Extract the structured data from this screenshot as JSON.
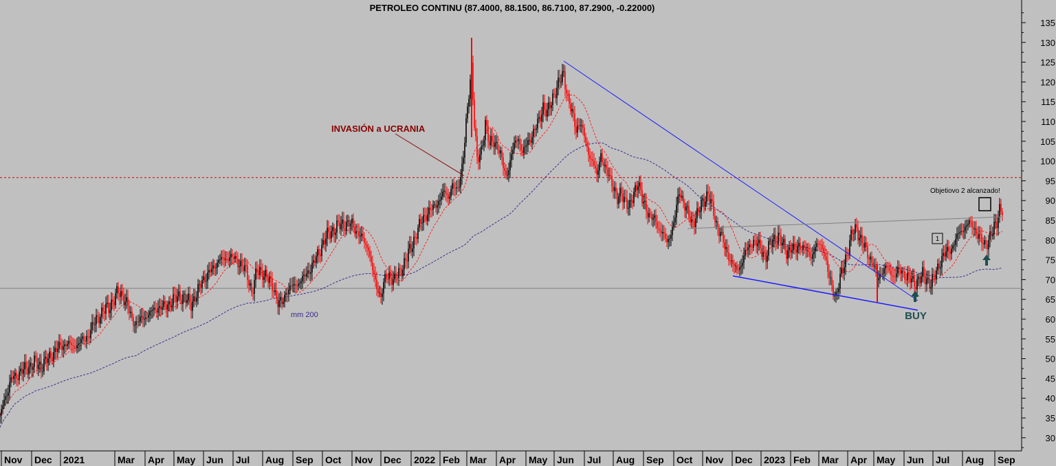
{
  "chart_data": {
    "type": "candlestick",
    "title": "PETROLEO CONTINU (87.4000, 88.1500, 86.7100, 87.2900, -0.22000)",
    "ylim": [
      25,
      140
    ],
    "yticks": [
      30,
      35,
      40,
      45,
      50,
      55,
      60,
      65,
      70,
      75,
      80,
      85,
      90,
      95,
      100,
      105,
      110,
      115,
      120,
      125,
      130,
      135
    ],
    "x_labels": [
      "Nov",
      "Dec",
      "2021",
      "Mar",
      "Apr",
      "May",
      "Jun",
      "Jul",
      "Aug",
      "Sep",
      "Oct",
      "Nov",
      "Dec",
      "2022",
      "Feb",
      "Mar",
      "Apr",
      "May",
      "Jun",
      "Jul",
      "Aug",
      "Sep",
      "Oct",
      "Nov",
      "Dec",
      "2023",
      "Feb",
      "Mar",
      "Apr",
      "May",
      "Jun",
      "Jul",
      "Aug",
      "Sep"
    ],
    "price_path": [
      [
        0,
        35
      ],
      [
        6,
        40
      ],
      [
        12,
        42
      ],
      [
        17,
        45
      ],
      [
        25,
        46
      ],
      [
        33,
        47
      ],
      [
        42,
        48
      ],
      [
        52,
        49
      ],
      [
        60,
        48
      ],
      [
        70,
        50
      ],
      [
        80,
        52
      ],
      [
        88,
        53
      ],
      [
        97,
        54
      ],
      [
        106,
        53
      ],
      [
        115,
        54
      ],
      [
        124,
        55
      ],
      [
        132,
        57
      ],
      [
        140,
        60
      ],
      [
        150,
        62
      ],
      [
        158,
        63
      ],
      [
        166,
        65
      ],
      [
        172,
        67
      ],
      [
        178,
        66
      ],
      [
        184,
        64
      ],
      [
        192,
        60
      ],
      [
        198,
        59
      ],
      [
        206,
        60
      ],
      [
        214,
        61
      ],
      [
        222,
        62
      ],
      [
        230,
        63
      ],
      [
        238,
        63
      ],
      [
        246,
        64
      ],
      [
        254,
        65
      ],
      [
        262,
        66
      ],
      [
        270,
        65
      ],
      [
        278,
        64
      ],
      [
        286,
        66
      ],
      [
        294,
        70
      ],
      [
        302,
        71
      ],
      [
        310,
        73
      ],
      [
        318,
        75
      ],
      [
        326,
        75
      ],
      [
        334,
        76
      ],
      [
        342,
        75
      ],
      [
        350,
        74
      ],
      [
        358,
        72
      ],
      [
        366,
        67
      ],
      [
        374,
        72
      ],
      [
        382,
        72
      ],
      [
        390,
        70
      ],
      [
        398,
        68
      ],
      [
        404,
        64
      ],
      [
        410,
        64
      ],
      [
        416,
        67
      ],
      [
        424,
        68
      ],
      [
        432,
        69
      ],
      [
        440,
        70
      ],
      [
        448,
        72
      ],
      [
        456,
        74
      ],
      [
        464,
        77
      ],
      [
        472,
        80
      ],
      [
        480,
        82
      ],
      [
        488,
        83
      ],
      [
        496,
        84
      ],
      [
        504,
        84
      ],
      [
        512,
        84
      ],
      [
        520,
        82
      ],
      [
        528,
        80
      ],
      [
        536,
        78
      ],
      [
        542,
        72
      ],
      [
        548,
        68
      ],
      [
        554,
        66
      ],
      [
        560,
        70
      ],
      [
        566,
        71
      ],
      [
        574,
        70
      ],
      [
        582,
        72
      ],
      [
        590,
        75
      ],
      [
        598,
        78
      ],
      [
        606,
        82
      ],
      [
        614,
        85
      ],
      [
        622,
        87
      ],
      [
        630,
        88
      ],
      [
        638,
        90
      ],
      [
        646,
        92
      ],
      [
        652,
        91
      ],
      [
        658,
        94
      ],
      [
        664,
        92
      ],
      [
        670,
        96
      ],
      [
        676,
        105
      ],
      [
        681,
        115
      ],
      [
        686,
        124
      ],
      [
        690,
        110
      ],
      [
        694,
        100
      ],
      [
        700,
        102
      ],
      [
        706,
        110
      ],
      [
        712,
        104
      ],
      [
        718,
        105
      ],
      [
        724,
        104
      ],
      [
        730,
        100
      ],
      [
        736,
        96
      ],
      [
        742,
        100
      ],
      [
        748,
        104
      ],
      [
        754,
        106
      ],
      [
        760,
        102
      ],
      [
        766,
        104
      ],
      [
        772,
        106
      ],
      [
        778,
        108
      ],
      [
        784,
        110
      ],
      [
        790,
        114
      ],
      [
        796,
        112
      ],
      [
        802,
        115
      ],
      [
        808,
        118
      ],
      [
        814,
        120
      ],
      [
        820,
        122
      ],
      [
        826,
        116
      ],
      [
        832,
        112
      ],
      [
        838,
        108
      ],
      [
        844,
        110
      ],
      [
        850,
        106
      ],
      [
        856,
        102
      ],
      [
        862,
        100
      ],
      [
        868,
        96
      ],
      [
        874,
        102
      ],
      [
        880,
        98
      ],
      [
        886,
        96
      ],
      [
        892,
        94
      ],
      [
        898,
        90
      ],
      [
        904,
        92
      ],
      [
        910,
        90
      ],
      [
        916,
        88
      ],
      [
        922,
        92
      ],
      [
        928,
        95
      ],
      [
        934,
        90
      ],
      [
        940,
        88
      ],
      [
        946,
        86
      ],
      [
        952,
        85
      ],
      [
        958,
        83
      ],
      [
        964,
        82
      ],
      [
        970,
        79
      ],
      [
        976,
        82
      ],
      [
        982,
        86
      ],
      [
        988,
        92
      ],
      [
        994,
        90
      ],
      [
        1000,
        87
      ],
      [
        1006,
        84
      ],
      [
        1012,
        86
      ],
      [
        1018,
        88
      ],
      [
        1024,
        90
      ],
      [
        1030,
        92
      ],
      [
        1036,
        88
      ],
      [
        1042,
        84
      ],
      [
        1048,
        82
      ],
      [
        1054,
        78
      ],
      [
        1060,
        76
      ],
      [
        1066,
        74
      ],
      [
        1072,
        72
      ],
      [
        1078,
        74
      ],
      [
        1084,
        77
      ],
      [
        1090,
        78
      ],
      [
        1096,
        80
      ],
      [
        1102,
        79
      ],
      [
        1108,
        77
      ],
      [
        1114,
        76
      ],
      [
        1120,
        79
      ],
      [
        1126,
        80
      ],
      [
        1132,
        81
      ],
      [
        1138,
        79
      ],
      [
        1144,
        77
      ],
      [
        1150,
        78
      ],
      [
        1156,
        77
      ],
      [
        1162,
        79
      ],
      [
        1168,
        78
      ],
      [
        1174,
        77
      ],
      [
        1180,
        76
      ],
      [
        1186,
        78
      ],
      [
        1192,
        79
      ],
      [
        1198,
        78
      ],
      [
        1204,
        72
      ],
      [
        1210,
        68
      ],
      [
        1216,
        66
      ],
      [
        1222,
        70
      ],
      [
        1228,
        74
      ],
      [
        1234,
        78
      ],
      [
        1240,
        82
      ],
      [
        1246,
        83
      ],
      [
        1252,
        80
      ],
      [
        1258,
        78
      ],
      [
        1264,
        76
      ],
      [
        1270,
        74
      ],
      [
        1276,
        70
      ],
      [
        1282,
        72
      ],
      [
        1288,
        73
      ],
      [
        1294,
        72
      ],
      [
        1300,
        71
      ],
      [
        1306,
        72
      ],
      [
        1312,
        72
      ],
      [
        1318,
        71
      ],
      [
        1324,
        70
      ],
      [
        1330,
        69
      ],
      [
        1336,
        70
      ],
      [
        1342,
        71
      ],
      [
        1348,
        70
      ],
      [
        1354,
        69
      ],
      [
        1360,
        71
      ],
      [
        1366,
        74
      ],
      [
        1372,
        76
      ],
      [
        1378,
        77
      ],
      [
        1384,
        78
      ],
      [
        1390,
        80
      ],
      [
        1396,
        82
      ],
      [
        1402,
        83
      ],
      [
        1408,
        84
      ],
      [
        1414,
        84
      ],
      [
        1420,
        82
      ],
      [
        1426,
        80
      ],
      [
        1432,
        79
      ],
      [
        1438,
        80
      ],
      [
        1444,
        82
      ],
      [
        1450,
        85
      ],
      [
        1454,
        88
      ],
      [
        1458,
        87.3
      ]
    ],
    "annotations": {
      "invasion": "INVASIÓN a UCRANIA",
      "objective": "Objetiovo 2 alcanzado!",
      "buy": "BUY",
      "mm200": "mm 200",
      "box_1": "1"
    },
    "horizontal_levels": [
      95.8,
      67.8
    ],
    "grid": false,
    "legend": "none"
  },
  "colors": {
    "background": "#c0c0c0",
    "candle_up": "#000000",
    "candle_down": "#ff0000",
    "ma_short": "#ff2020",
    "ma_long": "#3a2a8a",
    "trendline": "#1a1aff",
    "level_dotted": "#cc0000",
    "level_solid": "#808080",
    "arrow": "#1f4e4e"
  }
}
